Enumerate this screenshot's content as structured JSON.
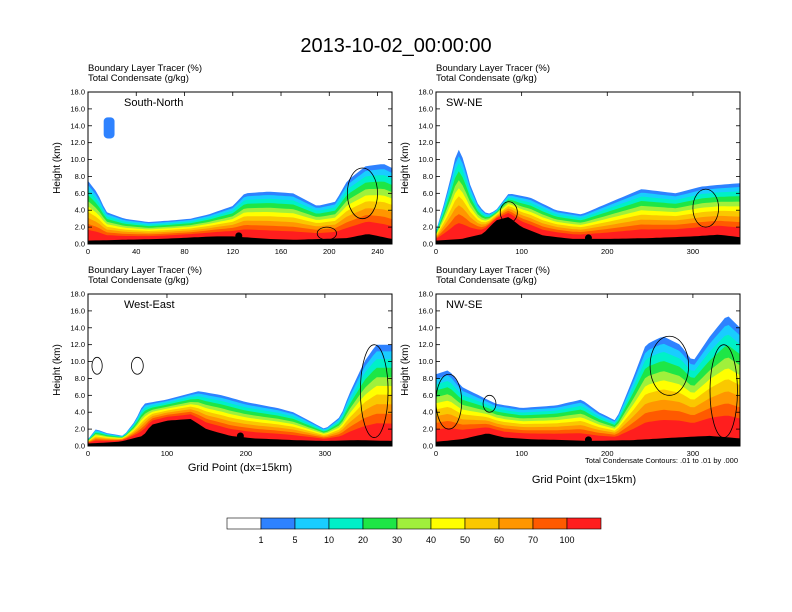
{
  "chart_data": {
    "type": "heatmap",
    "title": "2013-10-02_00:00:00",
    "field_label": "Boundary Layer Tracer",
    "field_units": "(%)",
    "contour_label": "Total Condensate",
    "contour_units": "(g/kg)",
    "ylabel": "Height (km)",
    "xlabel": "Grid Point (dx=15km)",
    "contour_note": "Total Condensate Contours: .01 to .01 by .000",
    "colorbar": {
      "levels": [
        "1",
        "5",
        "10",
        "20",
        "30",
        "40",
        "50",
        "60",
        "70",
        "100"
      ],
      "colors": [
        "#ffffff",
        "#2e82ff",
        "#19cdff",
        "#00f0c8",
        "#1ee646",
        "#a0f03c",
        "#ffff00",
        "#fac800",
        "#ff9600",
        "#ff5a00",
        "#ff1e1e"
      ]
    },
    "panels": [
      {
        "name": "South-North",
        "xlim": [
          0,
          252
        ],
        "ylim": [
          0,
          18
        ],
        "xticks": [
          0,
          40,
          80,
          120,
          160,
          200,
          240
        ],
        "yticks": [
          "0.0",
          "2.0",
          "4.0",
          "6.0",
          "8.0",
          "10.0",
          "12.0",
          "14.0",
          "16.0",
          "18.0"
        ],
        "xtick_labels": [
          "0",
          "40",
          "80",
          "120",
          "160",
          "200",
          "240"
        ],
        "marker_x": 125,
        "terrain": [
          [
            0,
            0.4
          ],
          [
            30,
            0.5
          ],
          [
            60,
            0.6
          ],
          [
            90,
            0.8
          ],
          [
            105,
            0.9
          ],
          [
            120,
            0.9
          ],
          [
            130,
            0.8
          ],
          [
            150,
            0.6
          ],
          [
            170,
            0.5
          ],
          [
            195,
            0.6
          ],
          [
            215,
            0.7
          ],
          [
            232,
            1.2
          ],
          [
            245,
            0.8
          ],
          [
            252,
            0.6
          ]
        ],
        "layer_top": [
          [
            0,
            7.5
          ],
          [
            8,
            6.0
          ],
          [
            15,
            3.8
          ],
          [
            30,
            3.0
          ],
          [
            50,
            2.6
          ],
          [
            70,
            2.8
          ],
          [
            85,
            3.0
          ],
          [
            100,
            3.5
          ],
          [
            110,
            4.0
          ],
          [
            120,
            4.5
          ],
          [
            130,
            6.0
          ],
          [
            150,
            6.2
          ],
          [
            170,
            6.0
          ],
          [
            190,
            4.5
          ],
          [
            205,
            5.0
          ],
          [
            215,
            7.5
          ],
          [
            230,
            9.2
          ],
          [
            245,
            9.5
          ],
          [
            252,
            9.0
          ]
        ],
        "plumes": [
          [
            13,
            8,
            22,
            12.5,
            15.0
          ]
        ],
        "cloud_boxes": [
          [
            215,
            240,
            3.0,
            9.0
          ],
          [
            190,
            206,
            0.5,
            2.0
          ]
        ]
      },
      {
        "name": "SW-NE",
        "xlim": [
          0,
          355
        ],
        "ylim": [
          0,
          18
        ],
        "xticks": [
          0,
          100,
          200,
          300
        ],
        "yticks": [
          "0.0",
          "2.0",
          "4.0",
          "6.0",
          "8.0",
          "10.0",
          "12.0",
          "14.0",
          "16.0",
          "18.0"
        ],
        "xtick_labels": [
          "0",
          "100",
          "200",
          "300"
        ],
        "marker_x": 178,
        "terrain": [
          [
            0,
            0.4
          ],
          [
            30,
            0.6
          ],
          [
            55,
            1.2
          ],
          [
            70,
            2.8
          ],
          [
            85,
            3.2
          ],
          [
            100,
            2.0
          ],
          [
            125,
            1.0
          ],
          [
            160,
            0.6
          ],
          [
            200,
            0.6
          ],
          [
            250,
            0.7
          ],
          [
            300,
            0.9
          ],
          [
            330,
            1.1
          ],
          [
            355,
            0.8
          ]
        ],
        "layer_top": [
          [
            0,
            1.5
          ],
          [
            10,
            5.0
          ],
          [
            20,
            9.0
          ],
          [
            25,
            11.5
          ],
          [
            32,
            10.0
          ],
          [
            40,
            7.0
          ],
          [
            50,
            4.5
          ],
          [
            60,
            3.5
          ],
          [
            70,
            4.0
          ],
          [
            85,
            6.0
          ],
          [
            110,
            5.5
          ],
          [
            140,
            4.0
          ],
          [
            170,
            3.5
          ],
          [
            200,
            4.8
          ],
          [
            240,
            6.5
          ],
          [
            280,
            6.0
          ],
          [
            310,
            6.8
          ],
          [
            330,
            7.0
          ],
          [
            355,
            7.2
          ]
        ],
        "plumes": [],
        "cloud_boxes": [
          [
            300,
            330,
            2.0,
            6.5
          ],
          [
            75,
            95,
            2.5,
            5.0
          ]
        ]
      },
      {
        "name": "West-East",
        "xlim": [
          0,
          385
        ],
        "ylim": [
          0,
          18
        ],
        "xticks": [
          0,
          100,
          200,
          300
        ],
        "yticks": [
          "0.0",
          "2.0",
          "4.0",
          "6.0",
          "8.0",
          "10.0",
          "12.0",
          "14.0",
          "16.0",
          "18.0"
        ],
        "xtick_labels": [
          "0",
          "100",
          "200",
          "300"
        ],
        "marker_x": 193,
        "terrain": [
          [
            0,
            0.3
          ],
          [
            40,
            0.5
          ],
          [
            70,
            1.2
          ],
          [
            80,
            2.5
          ],
          [
            100,
            3.0
          ],
          [
            130,
            3.2
          ],
          [
            150,
            2.0
          ],
          [
            180,
            1.2
          ],
          [
            210,
            0.9
          ],
          [
            260,
            0.7
          ],
          [
            300,
            0.6
          ],
          [
            340,
            0.7
          ],
          [
            385,
            0.6
          ]
        ],
        "layer_top": [
          [
            0,
            0.8
          ],
          [
            10,
            2.0
          ],
          [
            25,
            1.5
          ],
          [
            45,
            1.2
          ],
          [
            60,
            3.0
          ],
          [
            70,
            5.0
          ],
          [
            100,
            5.5
          ],
          [
            140,
            6.5
          ],
          [
            170,
            6.0
          ],
          [
            200,
            5.2
          ],
          [
            240,
            4.5
          ],
          [
            260,
            4.0
          ],
          [
            300,
            2.0
          ],
          [
            320,
            3.5
          ],
          [
            330,
            6.0
          ],
          [
            350,
            10.0
          ],
          [
            365,
            12.0
          ],
          [
            385,
            12.0
          ]
        ],
        "plumes": [],
        "cloud_boxes": [
          [
            5,
            18,
            8.5,
            10.5
          ],
          [
            55,
            70,
            8.5,
            10.5
          ],
          [
            345,
            380,
            1.0,
            12.0
          ]
        ]
      },
      {
        "name": "NW-SE",
        "xlim": [
          0,
          355
        ],
        "ylim": [
          0,
          18
        ],
        "xticks": [
          0,
          100,
          200,
          300
        ],
        "yticks": [
          "0.0",
          "2.0",
          "4.0",
          "6.0",
          "8.0",
          "10.0",
          "12.0",
          "14.0",
          "16.0",
          "18.0"
        ],
        "xtick_labels": [
          "0",
          "100",
          "200",
          "300"
        ],
        "marker_x": 178,
        "terrain": [
          [
            0,
            0.5
          ],
          [
            30,
            0.8
          ],
          [
            60,
            1.5
          ],
          [
            80,
            1.0
          ],
          [
            110,
            0.8
          ],
          [
            150,
            0.7
          ],
          [
            180,
            0.6
          ],
          [
            230,
            0.7
          ],
          [
            280,
            1.0
          ],
          [
            320,
            1.2
          ],
          [
            355,
            0.9
          ]
        ],
        "layer_top": [
          [
            0,
            8.5
          ],
          [
            15,
            9.0
          ],
          [
            30,
            7.0
          ],
          [
            50,
            6.0
          ],
          [
            70,
            5.0
          ],
          [
            100,
            4.5
          ],
          [
            140,
            4.8
          ],
          [
            170,
            5.5
          ],
          [
            190,
            4.0
          ],
          [
            210,
            3.0
          ],
          [
            230,
            8.0
          ],
          [
            245,
            12.0
          ],
          [
            265,
            13.0
          ],
          [
            285,
            12.0
          ],
          [
            300,
            10.0
          ],
          [
            320,
            13.0
          ],
          [
            340,
            15.5
          ],
          [
            355,
            14.0
          ]
        ],
        "plumes": [],
        "cloud_boxes": [
          [
            0,
            30,
            2.0,
            8.5
          ],
          [
            55,
            70,
            4.0,
            6.0
          ],
          [
            250,
            295,
            6.0,
            13.0
          ],
          [
            320,
            352,
            1.0,
            12.0
          ]
        ]
      }
    ]
  }
}
